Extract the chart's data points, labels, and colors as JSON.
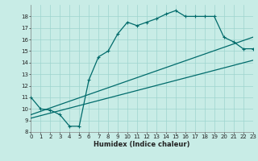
{
  "xlabel": "Humidex (Indice chaleur)",
  "xlim": [
    0,
    23
  ],
  "ylim": [
    8,
    19
  ],
  "yticks": [
    8,
    9,
    10,
    11,
    12,
    13,
    14,
    15,
    16,
    17,
    18
  ],
  "xticks": [
    0,
    1,
    2,
    3,
    4,
    5,
    6,
    7,
    8,
    9,
    10,
    11,
    12,
    13,
    14,
    15,
    16,
    17,
    18,
    19,
    20,
    21,
    22,
    23
  ],
  "bg_color": "#c8ece6",
  "grid_color": "#9dd4ce",
  "line_color": "#006b6b",
  "main_x": [
    0,
    1,
    2,
    3,
    4,
    5,
    6,
    7,
    8,
    9,
    10,
    11,
    12,
    13,
    14,
    15,
    16,
    17,
    18,
    19,
    20,
    21,
    22,
    23
  ],
  "main_y": [
    11.0,
    10.0,
    9.9,
    9.5,
    8.5,
    8.5,
    12.5,
    14.5,
    15.0,
    16.5,
    17.5,
    17.2,
    17.5,
    17.8,
    18.2,
    18.5,
    18.0,
    18.0,
    18.0,
    18.0,
    16.2,
    15.8,
    15.2,
    15.2
  ],
  "line2_start_x": 0,
  "line2_start_y": 9.5,
  "line2_end_x": 23,
  "line2_end_y": 16.2,
  "line3_start_x": 0,
  "line3_start_y": 9.2,
  "line3_end_x": 23,
  "line3_end_y": 14.2
}
